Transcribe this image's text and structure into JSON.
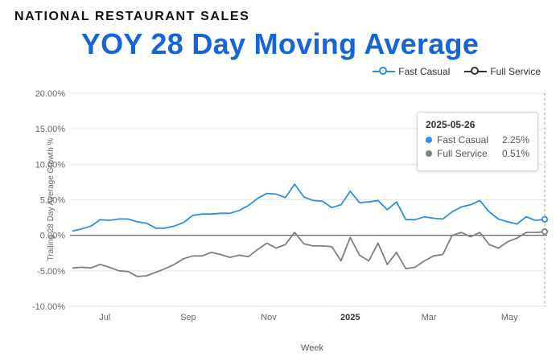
{
  "header": {
    "kicker": "NATIONAL RESTAURANT SALES",
    "title": "YOY 28 Day Moving Average"
  },
  "colors": {
    "fast_casual": "#2f8de4",
    "full_service": "#808080",
    "title": "#1565d8"
  },
  "tooltip": {
    "date": "2025-05-26",
    "rows": [
      {
        "name": "Fast Casual",
        "value": "2.25%"
      },
      {
        "name": "Full Service",
        "value": "0.51%"
      }
    ]
  },
  "chart_data": {
    "type": "line",
    "title": "YOY 28 Day Moving Average",
    "xlabel": "Week",
    "ylabel": "Trailing 28 Day Average Growth %",
    "ylim": [
      -10,
      20
    ],
    "yticks": [
      "20.00%",
      "15.00%",
      "10.00%",
      "5.00%",
      "0.00%",
      "-5.00%",
      "-10.00%"
    ],
    "ytick_values": [
      20,
      15,
      10,
      5,
      0,
      -5,
      -10
    ],
    "xticks": [
      {
        "label": "Jul",
        "week": 3.5,
        "bold": false
      },
      {
        "label": "Sep",
        "week": 12.5,
        "bold": false
      },
      {
        "label": "Nov",
        "week": 21.2,
        "bold": false
      },
      {
        "label": "2025",
        "week": 30,
        "bold": true
      },
      {
        "label": "Mar",
        "week": 38.5,
        "bold": false
      },
      {
        "label": "May",
        "week": 47.2,
        "bold": false
      }
    ],
    "legend": "top-right",
    "series": [
      {
        "name": "Fast Casual",
        "values": [
          0.6,
          0.9,
          1.3,
          2.2,
          2.1,
          2.3,
          2.3,
          1.9,
          1.7,
          1.0,
          1.0,
          1.3,
          1.8,
          2.8,
          3.0,
          3.0,
          3.1,
          3.1,
          3.5,
          4.2,
          5.2,
          5.9,
          5.8,
          5.3,
          7.2,
          5.4,
          4.9,
          4.8,
          3.9,
          4.3,
          6.2,
          4.6,
          4.7,
          4.9,
          3.6,
          4.7,
          2.2,
          2.2,
          2.6,
          2.4,
          2.3,
          3.3,
          4.0,
          4.3,
          4.9,
          3.3,
          2.3,
          1.9,
          1.6,
          2.6,
          2.1,
          2.25
        ]
      },
      {
        "name": "Full Service",
        "values": [
          -4.6,
          -4.5,
          -4.6,
          -4.1,
          -4.5,
          -5.0,
          -5.1,
          -5.8,
          -5.7,
          -5.2,
          -4.7,
          -4.1,
          -3.3,
          -2.9,
          -2.9,
          -2.4,
          -2.7,
          -3.1,
          -2.8,
          -3.0,
          -2.0,
          -1.1,
          -1.8,
          -1.3,
          0.4,
          -1.2,
          -1.5,
          -1.5,
          -1.6,
          -3.6,
          -0.3,
          -2.8,
          -3.6,
          -1.1,
          -4.1,
          -2.4,
          -4.7,
          -4.5,
          -3.6,
          -2.9,
          -2.7,
          0.0,
          0.4,
          -0.2,
          0.4,
          -1.3,
          -1.8,
          -0.9,
          -0.4,
          0.4,
          0.4,
          0.51
        ]
      }
    ]
  }
}
